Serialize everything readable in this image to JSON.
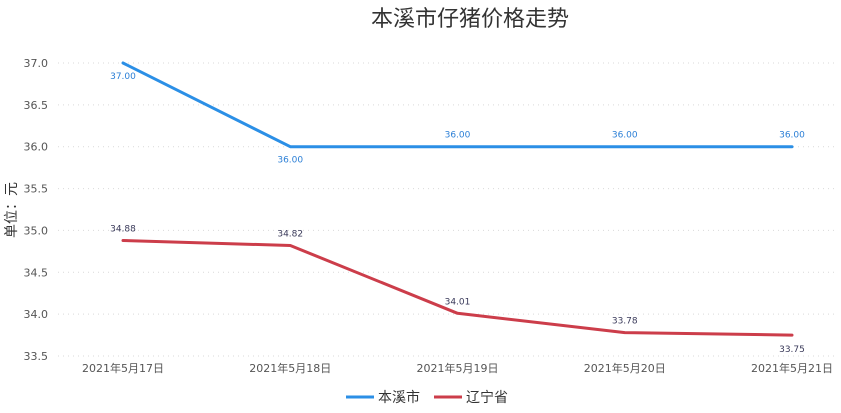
{
  "chart_data": {
    "type": "line",
    "title": "本溪市仔猪价格走势",
    "xlabel": "",
    "ylabel": "单位：元",
    "categories": [
      "2021年5月17日",
      "2021年5月18日",
      "2021年5月19日",
      "2021年5月20日",
      "2021年5月21日"
    ],
    "ylim": [
      33.5,
      37.0
    ],
    "yticks": [
      "33.5",
      "34.0",
      "34.5",
      "35.0",
      "35.5",
      "36.0",
      "36.5",
      "37.0"
    ],
    "grid": true,
    "legend_position": "bottom",
    "series": [
      {
        "name": "本溪市",
        "color": "#2b8fe6",
        "values": [
          37.0,
          36.0,
          36.0,
          36.0,
          36.0
        ],
        "labels": [
          "37.00",
          "36.00",
          "36.00",
          "36.00",
          "36.00"
        ]
      },
      {
        "name": "辽宁省",
        "color": "#cc3d4a",
        "values": [
          34.88,
          34.82,
          34.01,
          33.78,
          33.75
        ],
        "labels": [
          "34.88",
          "34.82",
          "34.01",
          "33.78",
          "33.75"
        ]
      }
    ]
  }
}
